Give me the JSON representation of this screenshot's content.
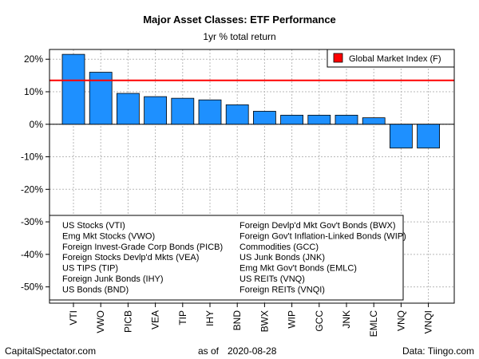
{
  "chart_data": {
    "type": "bar",
    "title": "Major Asset Classes: ETF Performance",
    "subtitle": "1yr % total return",
    "categories": [
      "VTI",
      "VWO",
      "PICB",
      "VEA",
      "TIP",
      "IHY",
      "BND",
      "BWX",
      "WIP",
      "GCC",
      "JNK",
      "EMLC",
      "VNQ",
      "VNQI"
    ],
    "values": [
      21.5,
      16.0,
      9.5,
      8.5,
      8.0,
      7.5,
      6.0,
      4.0,
      2.8,
      2.8,
      2.8,
      2.0,
      -7.3,
      -7.3
    ],
    "ylim": [
      -55,
      23
    ],
    "yticks": [
      20,
      10,
      0,
      -10,
      -20,
      -30,
      -40,
      -50
    ],
    "ytick_labels": [
      "20%",
      "10%",
      "0%",
      "-10%",
      "-20%",
      "-30%",
      "-40%",
      "-50%"
    ],
    "reference_line": {
      "value": 13.5,
      "label": "Global Market Index (F)",
      "color": "#ff0000"
    },
    "bar_color": "#1e90ff",
    "grid": true,
    "legend_position": "top-right",
    "key_left": [
      "US Stocks (VTI)",
      "Emg Mkt Stocks (VWO)",
      "Foreign Invest-Grade Corp Bonds (PICB)",
      "Foreign Stocks Devlp'd Mkts (VEA)",
      "US TIPS (TIP)",
      "Foreign Junk Bonds (IHY)",
      "US Bonds (BND)"
    ],
    "key_right": [
      "Foreign Devlp'd Mkt Gov't Bonds (BWX)",
      "Foreign Gov't Inflation-Linked Bonds (WIP)",
      "Commodities (GCC)",
      "US Junk Bonds (JNK)",
      "Emg Mkt Gov't Bonds (EMLC)",
      "US REITs (VNQ)",
      "Foreign REITs (VNQI)"
    ]
  },
  "footer": {
    "left": "CapitalSpectator.com",
    "center_prefix": "as of",
    "center_date": "2020-08-28",
    "right": "Data: Tiingo.com"
  }
}
